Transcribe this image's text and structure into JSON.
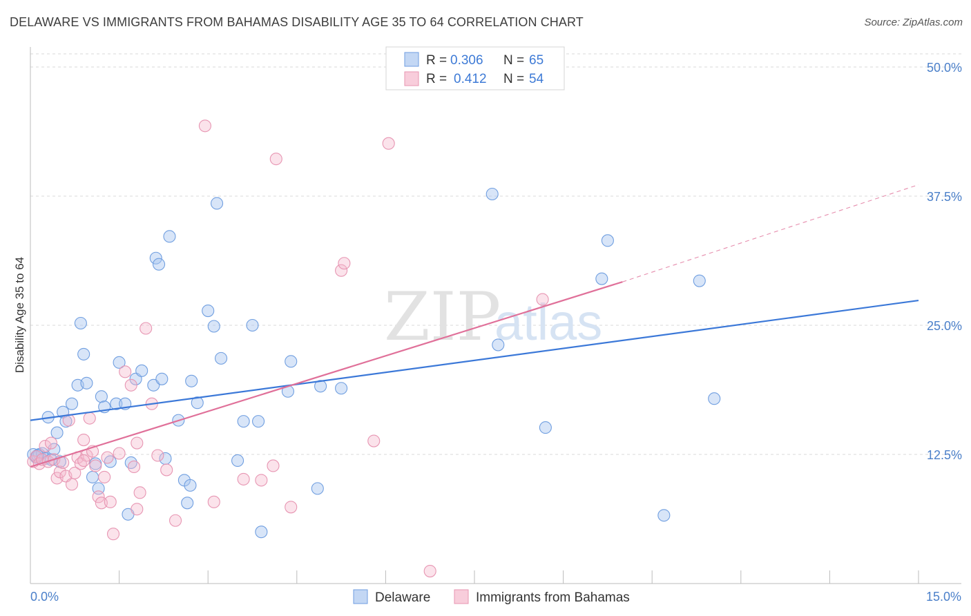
{
  "header": {
    "title": "DELAWARE VS IMMIGRANTS FROM BAHAMAS DISABILITY AGE 35 TO 64 CORRELATION CHART",
    "source": "Source: ZipAtlas.com"
  },
  "colors": {
    "blue": "#3b78d8",
    "blue_fill": "#a9c6ef",
    "pink": "#e07099",
    "pink_fill": "#f5b8cc",
    "grid": "#d9d9d9",
    "axis_text": "#4a7fc9"
  },
  "watermark": {
    "zip": "ZIP",
    "atlas": "atlas"
  },
  "legend": {
    "rows": [
      {
        "r_label": "R =",
        "r_value": "0.306",
        "n_label": "N =",
        "n_value": "65"
      },
      {
        "r_label": "R =",
        "r_value": "0.412",
        "n_label": "N =",
        "n_value": "54"
      }
    ]
  },
  "bottom_legend": {
    "series1": "Delaware",
    "series2": "Immigrants from Bahamas"
  },
  "chart_data": {
    "type": "scatter",
    "title": "DELAWARE VS IMMIGRANTS FROM BAHAMAS DISABILITY AGE 35 TO 64 CORRELATION CHART",
    "xlabel": "",
    "ylabel": "Disability Age 35 to 64",
    "xlim": [
      0,
      15
    ],
    "ylim": [
      0,
      50
    ],
    "x_tick_labels": [
      "0.0%",
      "15.0%"
    ],
    "y_ticks": [
      12.5,
      25.0,
      37.5,
      50.0
    ],
    "y_tick_labels": [
      "12.5%",
      "25.0%",
      "37.5%",
      "50.0%"
    ],
    "grid": true,
    "legend_position": "top-center",
    "series": [
      {
        "name": "Delaware",
        "R": 0.306,
        "N": 65,
        "trend": {
          "x": [
            0,
            15
          ],
          "y": [
            15.8,
            27.4
          ],
          "dashed_from": null
        },
        "points": [
          [
            0.05,
            12.5
          ],
          [
            0.1,
            12.2
          ],
          [
            0.15,
            12.5
          ],
          [
            0.2,
            12.6
          ],
          [
            0.25,
            12.1
          ],
          [
            0.3,
            16.1
          ],
          [
            0.35,
            12.0
          ],
          [
            0.4,
            13.0
          ],
          [
            0.45,
            14.6
          ],
          [
            0.5,
            11.8
          ],
          [
            0.55,
            16.6
          ],
          [
            0.6,
            15.7
          ],
          [
            0.7,
            17.4
          ],
          [
            0.8,
            19.2
          ],
          [
            0.85,
            25.2
          ],
          [
            0.9,
            22.2
          ],
          [
            0.95,
            19.4
          ],
          [
            1.05,
            10.3
          ],
          [
            1.1,
            11.6
          ],
          [
            1.15,
            9.2
          ],
          [
            1.2,
            18.1
          ],
          [
            1.25,
            17.1
          ],
          [
            1.35,
            11.8
          ],
          [
            1.45,
            17.4
          ],
          [
            1.5,
            21.4
          ],
          [
            1.6,
            17.4
          ],
          [
            1.65,
            6.7
          ],
          [
            1.7,
            11.7
          ],
          [
            1.78,
            19.8
          ],
          [
            1.88,
            20.6
          ],
          [
            2.08,
            19.2
          ],
          [
            2.12,
            31.5
          ],
          [
            2.17,
            30.9
          ],
          [
            2.22,
            19.8
          ],
          [
            2.28,
            12.1
          ],
          [
            2.35,
            33.6
          ],
          [
            2.5,
            15.8
          ],
          [
            2.6,
            10.0
          ],
          [
            2.65,
            7.8
          ],
          [
            2.7,
            9.5
          ],
          [
            2.72,
            19.6
          ],
          [
            2.82,
            17.5
          ],
          [
            3.0,
            26.4
          ],
          [
            3.1,
            24.9
          ],
          [
            3.15,
            36.8
          ],
          [
            3.22,
            21.8
          ],
          [
            3.5,
            11.9
          ],
          [
            3.6,
            15.7
          ],
          [
            3.9,
            5.0
          ],
          [
            3.85,
            15.7
          ],
          [
            3.75,
            25.0
          ],
          [
            4.35,
            18.6
          ],
          [
            4.4,
            21.5
          ],
          [
            4.85,
            9.2
          ],
          [
            4.9,
            19.1
          ],
          [
            5.25,
            18.9
          ],
          [
            7.8,
            37.7
          ],
          [
            7.9,
            23.1
          ],
          [
            8.7,
            15.1
          ],
          [
            9.65,
            29.5
          ],
          [
            9.75,
            33.2
          ],
          [
            10.7,
            6.6
          ],
          [
            11.3,
            29.3
          ],
          [
            11.55,
            17.9
          ],
          [
            0.12,
            12.4
          ]
        ]
      },
      {
        "name": "Immigrants from Bahamas",
        "R": 0.412,
        "N": 54,
        "trend": {
          "x": [
            0,
            10.0,
            15
          ],
          "y": [
            11.3,
            29.2,
            38.6
          ],
          "dashed_from": 10.0
        },
        "points": [
          [
            0.05,
            11.8
          ],
          [
            0.1,
            12.3
          ],
          [
            0.15,
            11.6
          ],
          [
            0.2,
            12.0
          ],
          [
            0.25,
            13.3
          ],
          [
            0.3,
            11.8
          ],
          [
            0.35,
            13.6
          ],
          [
            0.4,
            12.0
          ],
          [
            0.45,
            10.2
          ],
          [
            0.5,
            10.8
          ],
          [
            0.55,
            11.7
          ],
          [
            0.6,
            10.4
          ],
          [
            0.65,
            15.8
          ],
          [
            0.7,
            9.6
          ],
          [
            0.75,
            10.7
          ],
          [
            0.8,
            12.2
          ],
          [
            0.85,
            11.6
          ],
          [
            0.9,
            13.9
          ],
          [
            0.95,
            12.4
          ],
          [
            1.0,
            16.0
          ],
          [
            1.05,
            12.8
          ],
          [
            1.1,
            11.4
          ],
          [
            1.15,
            8.4
          ],
          [
            1.2,
            7.8
          ],
          [
            1.25,
            10.3
          ],
          [
            1.3,
            12.2
          ],
          [
            1.35,
            7.9
          ],
          [
            1.4,
            4.8
          ],
          [
            1.5,
            12.6
          ],
          [
            1.6,
            20.5
          ],
          [
            1.7,
            19.2
          ],
          [
            1.75,
            11.3
          ],
          [
            1.8,
            7.2
          ],
          [
            1.85,
            8.8
          ],
          [
            1.95,
            24.7
          ],
          [
            2.05,
            17.4
          ],
          [
            2.15,
            12.4
          ],
          [
            2.3,
            11.0
          ],
          [
            2.45,
            6.1
          ],
          [
            2.95,
            44.3
          ],
          [
            3.1,
            7.9
          ],
          [
            3.6,
            10.1
          ],
          [
            3.9,
            10.0
          ],
          [
            4.1,
            11.4
          ],
          [
            4.15,
            41.1
          ],
          [
            4.4,
            7.4
          ],
          [
            5.25,
            30.3
          ],
          [
            5.3,
            31.0
          ],
          [
            5.8,
            13.8
          ],
          [
            6.05,
            42.6
          ],
          [
            6.75,
            1.2
          ],
          [
            8.65,
            27.5
          ],
          [
            0.9,
            11.9
          ],
          [
            1.8,
            13.6
          ]
        ]
      }
    ]
  }
}
